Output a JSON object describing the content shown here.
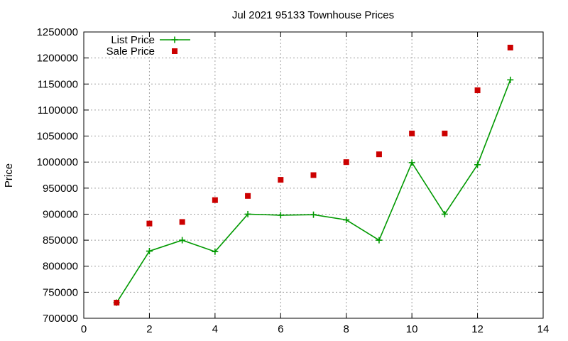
{
  "chart_data": {
    "type": "line",
    "title": "Jul 2021 95133 Townhouse Prices",
    "xlabel": "",
    "ylabel": "Price",
    "xlim": [
      0,
      14
    ],
    "ylim": [
      700000,
      1250000
    ],
    "xticks": [
      0,
      2,
      4,
      6,
      8,
      10,
      12,
      14
    ],
    "yticks": [
      700000,
      750000,
      800000,
      850000,
      900000,
      950000,
      1000000,
      1050000,
      1100000,
      1150000,
      1200000,
      1250000
    ],
    "grid": true,
    "legend_position": "top-left",
    "series": [
      {
        "name": "List Price",
        "style": "line-with-plus-markers",
        "color": "#009900",
        "x": [
          1,
          2,
          3,
          4,
          5,
          6,
          7,
          8,
          9,
          10,
          11,
          12,
          13
        ],
        "y": [
          730000,
          829000,
          850000,
          828000,
          900000,
          898000,
          899000,
          889000,
          850000,
          999000,
          900000,
          995000,
          1158000
        ]
      },
      {
        "name": "Sale Price",
        "style": "square-markers",
        "color": "#cc0000",
        "x": [
          1,
          2,
          3,
          4,
          5,
          6,
          7,
          8,
          9,
          10,
          11,
          12,
          13
        ],
        "y": [
          730000,
          882000,
          885000,
          927000,
          935000,
          966000,
          975000,
          1000000,
          1015000,
          1055000,
          1055000,
          1138000,
          1220000
        ]
      }
    ]
  }
}
